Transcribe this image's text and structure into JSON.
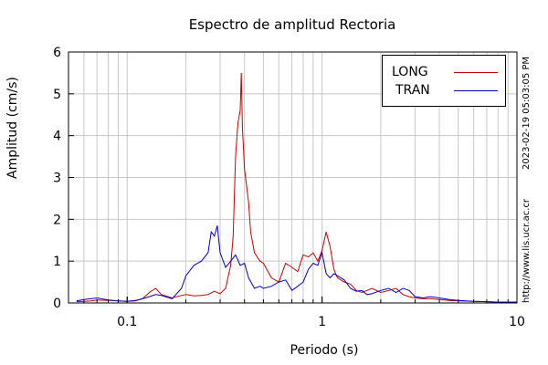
{
  "chart_data": {
    "type": "line",
    "title": "Espectro de amplitud Rectoria",
    "xlabel": "Periodo (s)",
    "ylabel": "Amplitud (cm/s)",
    "xscale": "log",
    "xlim": [
      0.05,
      10
    ],
    "ylim": [
      0,
      6
    ],
    "xticks": [
      0.1,
      1,
      10
    ],
    "xtick_labels": [
      "0.1",
      "1",
      "10"
    ],
    "yticks": [
      0,
      1,
      2,
      3,
      4,
      5,
      6
    ],
    "ytick_labels": [
      "0",
      "1",
      "2",
      "3",
      "4",
      "5",
      "6"
    ],
    "grid": true,
    "legend_position": "top-right",
    "series": [
      {
        "name": "LONG",
        "color": "#cc0000",
        "x": [
          0.055,
          0.06,
          0.065,
          0.07,
          0.08,
          0.09,
          0.1,
          0.11,
          0.12,
          0.13,
          0.14,
          0.15,
          0.17,
          0.19,
          0.2,
          0.22,
          0.24,
          0.26,
          0.28,
          0.3,
          0.32,
          0.34,
          0.35,
          0.36,
          0.37,
          0.38,
          0.385,
          0.39,
          0.4,
          0.41,
          0.42,
          0.43,
          0.45,
          0.48,
          0.5,
          0.55,
          0.6,
          0.65,
          0.7,
          0.75,
          0.8,
          0.85,
          0.9,
          0.95,
          1.0,
          1.05,
          1.1,
          1.15,
          1.2,
          1.3,
          1.4,
          1.5,
          1.6,
          1.7,
          1.8,
          2.0,
          2.2,
          2.4,
          2.6,
          2.8,
          3.0,
          3.3,
          3.6,
          4.0,
          4.5,
          5.0,
          6.0,
          7.0,
          8.0,
          9.0,
          10.0
        ],
        "y": [
          0.03,
          0.04,
          0.05,
          0.07,
          0.06,
          0.05,
          0.04,
          0.05,
          0.1,
          0.25,
          0.35,
          0.2,
          0.12,
          0.18,
          0.2,
          0.17,
          0.18,
          0.2,
          0.28,
          0.22,
          0.35,
          0.9,
          1.6,
          3.5,
          4.3,
          4.6,
          5.5,
          4.2,
          3.2,
          2.8,
          2.4,
          1.7,
          1.2,
          1.0,
          0.95,
          0.6,
          0.5,
          0.95,
          0.85,
          0.75,
          1.15,
          1.1,
          1.2,
          1.0,
          1.25,
          1.7,
          1.35,
          0.8,
          0.6,
          0.5,
          0.45,
          0.3,
          0.25,
          0.3,
          0.35,
          0.25,
          0.3,
          0.35,
          0.2,
          0.15,
          0.12,
          0.1,
          0.1,
          0.08,
          0.06,
          0.05,
          0.04,
          0.03,
          0.02,
          0.02,
          0.02
        ]
      },
      {
        "name": "TRAN",
        "color": "#0000cc",
        "x": [
          0.055,
          0.06,
          0.065,
          0.07,
          0.08,
          0.09,
          0.1,
          0.11,
          0.12,
          0.13,
          0.14,
          0.15,
          0.17,
          0.19,
          0.2,
          0.22,
          0.24,
          0.26,
          0.27,
          0.28,
          0.29,
          0.3,
          0.32,
          0.34,
          0.36,
          0.38,
          0.4,
          0.42,
          0.45,
          0.48,
          0.5,
          0.55,
          0.6,
          0.65,
          0.7,
          0.75,
          0.8,
          0.85,
          0.9,
          0.95,
          1.0,
          1.05,
          1.1,
          1.15,
          1.2,
          1.3,
          1.4,
          1.5,
          1.6,
          1.7,
          1.8,
          2.0,
          2.2,
          2.4,
          2.6,
          2.8,
          3.0,
          3.3,
          3.6,
          4.0,
          4.5,
          5.0,
          6.0,
          7.0,
          8.0,
          9.0,
          10.0
        ],
        "y": [
          0.05,
          0.08,
          0.1,
          0.12,
          0.07,
          0.05,
          0.04,
          0.06,
          0.1,
          0.15,
          0.2,
          0.18,
          0.1,
          0.35,
          0.65,
          0.9,
          1.0,
          1.2,
          1.7,
          1.6,
          1.85,
          1.2,
          0.85,
          1.0,
          1.15,
          0.9,
          0.95,
          0.6,
          0.35,
          0.4,
          0.35,
          0.4,
          0.5,
          0.55,
          0.3,
          0.4,
          0.5,
          0.8,
          0.95,
          0.9,
          1.2,
          0.7,
          0.6,
          0.7,
          0.65,
          0.55,
          0.35,
          0.28,
          0.3,
          0.2,
          0.22,
          0.3,
          0.35,
          0.25,
          0.35,
          0.3,
          0.15,
          0.12,
          0.15,
          0.12,
          0.08,
          0.06,
          0.04,
          0.03,
          0.02,
          0.02,
          0.02
        ]
      }
    ]
  },
  "side_text": {
    "timestamp": "2023-02-19 05:03:05 PM",
    "url": "http://www.lis.ucr.ac.cr"
  }
}
